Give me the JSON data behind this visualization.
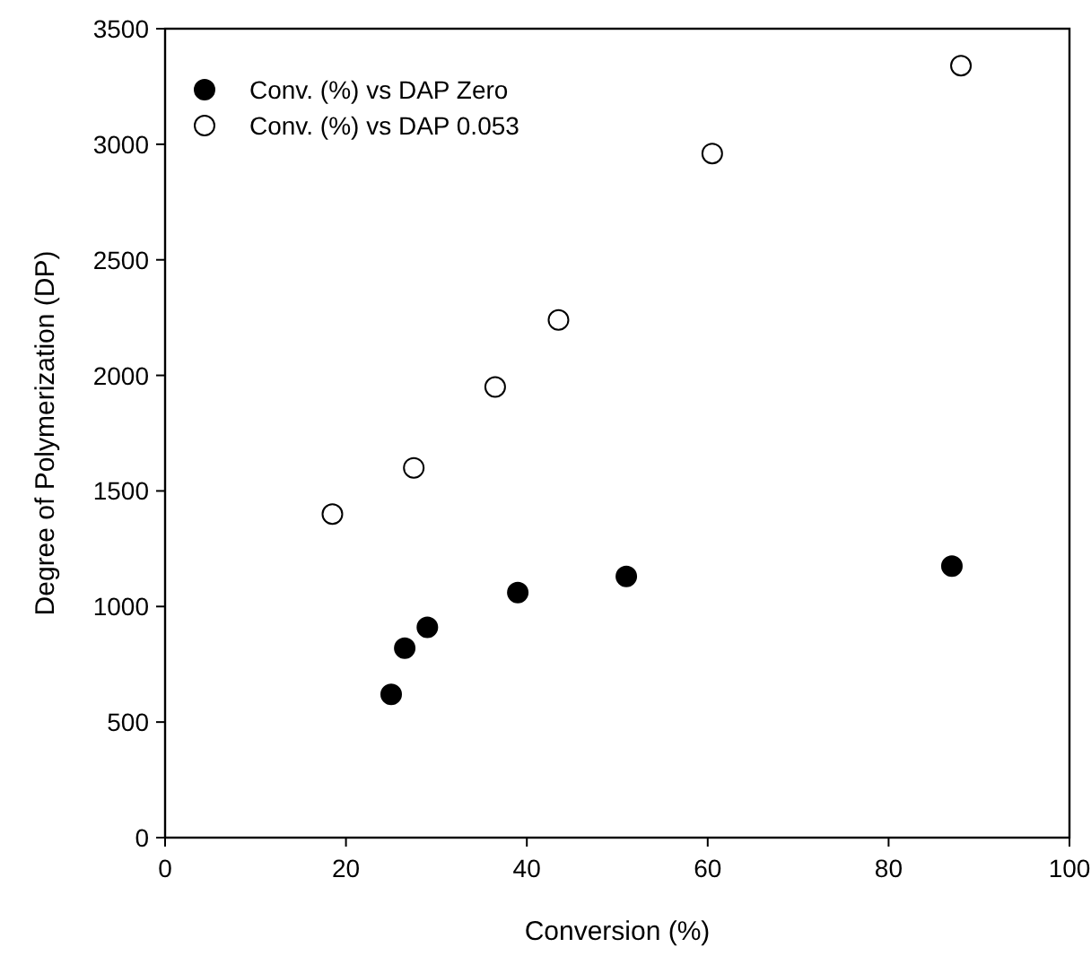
{
  "chart_data": {
    "type": "scatter",
    "xlabel": "Conversion (%)",
    "ylabel": "Degree of Polymerization (DP)",
    "xlim": [
      0,
      100
    ],
    "xticks": [
      0,
      20,
      40,
      60,
      80,
      100
    ],
    "ylim": [
      0,
      3500
    ],
    "yticks": [
      0,
      500,
      1000,
      1500,
      2000,
      2500,
      3000,
      3500
    ],
    "grid": false,
    "legend": "top left",
    "marker": "circle",
    "series": [
      {
        "name": "Conv. (%) vs DAP Zero",
        "color": "#000000",
        "x": [
          25,
          26.5,
          29,
          39,
          51,
          87
        ],
        "values": [
          620,
          820,
          910,
          1060,
          1130,
          1175
        ]
      },
      {
        "name": "Conv. (%) vs DAP 0.053",
        "color": "#ffffff",
        "x": [
          18.5,
          27.5,
          36.5,
          43.5,
          60.5,
          88
        ],
        "values": [
          1400,
          1600,
          1950,
          2240,
          2960,
          3340
        ]
      }
    ]
  }
}
